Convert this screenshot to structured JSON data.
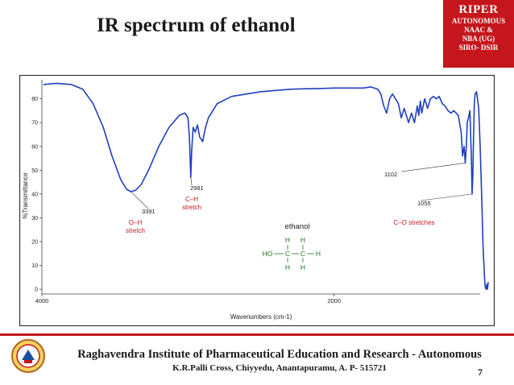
{
  "slide": {
    "title": "IR spectrum of ethanol",
    "page_number": "7"
  },
  "badge": {
    "title": "RIPER",
    "lines": [
      "AUTONOMOUS",
      "NAAC &",
      "NBA (UG)",
      "SIRO- DSIR"
    ],
    "color": "#c4161c"
  },
  "footer": {
    "institution": "Raghavendra Institute of Pharmaceutical Education and Research - Autonomous",
    "address": "K.R.Palli Cross, Chiyyedu, Anantapuramu, A. P- 515721",
    "logo_icon": "institution-emblem-icon",
    "accent_color": "#c4161c"
  },
  "chart_data": {
    "type": "line",
    "xlabel": "Wavenumbers (cm-1)",
    "ylabel": "%Transmittance",
    "xlim": [
      4000,
      1000
    ],
    "ylim": [
      -2,
      88
    ],
    "x_ticks": [
      4000,
      2000
    ],
    "y_ticks": [
      0,
      10,
      20,
      30,
      40,
      50,
      60,
      70,
      80
    ],
    "grid": false,
    "series": [
      {
        "color": "#1f3fbf",
        "points": [
          [
            3990,
            86
          ],
          [
            3900,
            86.5
          ],
          [
            3800,
            86
          ],
          [
            3720,
            84
          ],
          [
            3650,
            78
          ],
          [
            3580,
            68
          ],
          [
            3520,
            56
          ],
          [
            3460,
            46
          ],
          [
            3420,
            42
          ],
          [
            3391,
            41
          ],
          [
            3360,
            41.5
          ],
          [
            3320,
            44
          ],
          [
            3270,
            50
          ],
          [
            3200,
            60
          ],
          [
            3130,
            68
          ],
          [
            3060,
            73
          ],
          [
            3020,
            74
          ],
          [
            3000,
            72
          ],
          [
            2990,
            64
          ],
          [
            2981,
            47
          ],
          [
            2975,
            58
          ],
          [
            2965,
            68
          ],
          [
            2950,
            66
          ],
          [
            2935,
            69
          ],
          [
            2920,
            64
          ],
          [
            2900,
            62
          ],
          [
            2880,
            68
          ],
          [
            2860,
            72
          ],
          [
            2800,
            78
          ],
          [
            2700,
            81
          ],
          [
            2600,
            82
          ],
          [
            2500,
            83
          ],
          [
            2400,
            83.5
          ],
          [
            2300,
            84
          ],
          [
            2200,
            84.2
          ],
          [
            2100,
            84.3
          ],
          [
            2000,
            84.5
          ],
          [
            1900,
            84.5
          ],
          [
            1800,
            84.5
          ],
          [
            1750,
            85
          ],
          [
            1700,
            84
          ],
          [
            1680,
            82
          ],
          [
            1660,
            77
          ],
          [
            1640,
            74
          ],
          [
            1620,
            80
          ],
          [
            1600,
            82
          ],
          [
            1560,
            78
          ],
          [
            1540,
            72
          ],
          [
            1520,
            76
          ],
          [
            1500,
            72
          ],
          [
            1490,
            70
          ],
          [
            1470,
            74
          ],
          [
            1450,
            70
          ],
          [
            1430,
            77
          ],
          [
            1420,
            73
          ],
          [
            1410,
            79
          ],
          [
            1400,
            74
          ],
          [
            1380,
            80
          ],
          [
            1360,
            76
          ],
          [
            1340,
            80
          ],
          [
            1320,
            81
          ],
          [
            1300,
            80
          ],
          [
            1280,
            81
          ],
          [
            1260,
            78
          ],
          [
            1240,
            77
          ],
          [
            1220,
            75
          ],
          [
            1200,
            74
          ],
          [
            1180,
            75
          ],
          [
            1150,
            73
          ],
          [
            1130,
            66
          ],
          [
            1120,
            56
          ],
          [
            1110,
            60
          ],
          [
            1102,
            53
          ],
          [
            1095,
            60
          ],
          [
            1088,
            70
          ],
          [
            1080,
            72
          ],
          [
            1070,
            75
          ],
          [
            1060,
            55
          ],
          [
            1055,
            40
          ],
          [
            1050,
            48
          ],
          [
            1045,
            64
          ],
          [
            1040,
            78
          ],
          [
            1035,
            82
          ],
          [
            1025,
            83
          ],
          [
            1010,
            76
          ],
          [
            1000,
            60
          ],
          [
            990,
            40
          ],
          [
            980,
            18
          ],
          [
            970,
            5
          ],
          [
            965,
            1
          ],
          [
            960,
            0
          ],
          [
            955,
            2
          ],
          [
            950,
            0
          ],
          [
            945,
            3
          ]
        ]
      }
    ],
    "annotations": [
      {
        "label": "3391",
        "x": 3391,
        "y": 41,
        "color": "#1b1b1b"
      },
      {
        "label": "2981",
        "x": 2981,
        "y": 47,
        "color": "#1b1b1b"
      },
      {
        "label": "1102",
        "x": 1102,
        "y": 53,
        "color": "#1b1b1b"
      },
      {
        "label": "1055",
        "x": 1055,
        "y": 40,
        "color": "#1b1b1b"
      },
      {
        "label": "O–H stretch",
        "lines": [
          "O–H",
          "stretch"
        ],
        "color": "#c4161c"
      },
      {
        "label": "C–H stretch",
        "lines": [
          "C–H",
          "stretch"
        ],
        "color": "#c4161c"
      },
      {
        "label": "C–O stretches",
        "lines": [
          "C–O stretches"
        ],
        "color": "#c4161c"
      }
    ],
    "molecule": {
      "name": "ethanol",
      "color": "#1a7a1a",
      "atoms": [
        "H",
        "H",
        "HO",
        "C",
        "C",
        "H",
        "H",
        "H"
      ]
    }
  }
}
